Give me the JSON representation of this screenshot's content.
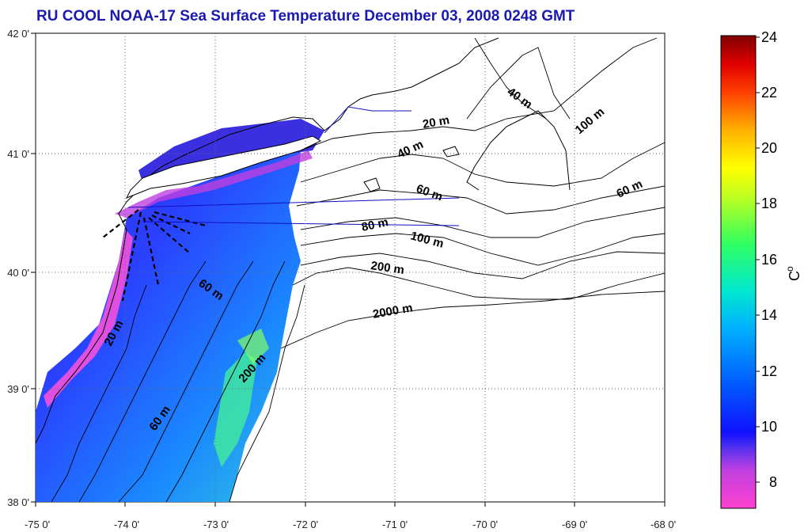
{
  "title": "RU COOL  NOAA-17 Sea Surface Temperature December 03, 2008 0248 GMT",
  "map": {
    "lon_ticks": [
      "-75 0'",
      "-74 0'",
      "-73 0'",
      "-72 0'",
      "-71 0'",
      "-70 0'",
      "-69 0'",
      "-68 0'"
    ],
    "lat_ticks": [
      "42 0'",
      "41 0'",
      "40 0'",
      "39 0'",
      "38 0'"
    ],
    "lon_range": [
      -75,
      -68
    ],
    "lat_range": [
      38,
      42
    ],
    "grid": "dotted",
    "contour_labels": [
      "20 m",
      "40 m",
      "40 m",
      "60 m",
      "60 m",
      "80 m",
      "100 m",
      "100 m",
      "200 m",
      "2000 m",
      "60 m",
      "20 m",
      "200 m",
      "60 m"
    ]
  },
  "colorbar": {
    "ticks": [
      "24",
      "22",
      "20",
      "18",
      "16",
      "14",
      "12",
      "10",
      "8"
    ],
    "unit_label": "C",
    "unit_superscript": "o",
    "range": [
      7,
      24
    ]
  }
}
